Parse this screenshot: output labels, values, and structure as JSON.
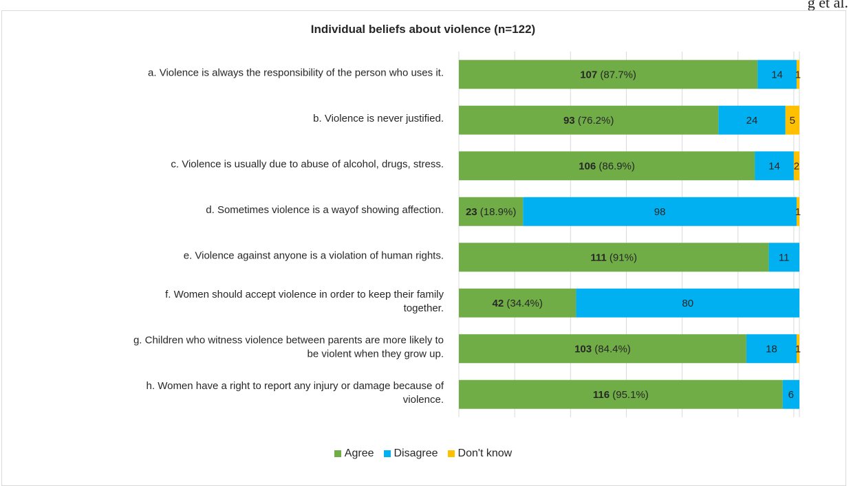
{
  "page": {
    "corner_text": "g et al."
  },
  "chart_data": {
    "type": "bar",
    "orientation": "horizontal",
    "stacked": true,
    "title": "Individual beliefs about violence (n=122)",
    "categories": [
      "a.  Violence is always the responsibility of the person who uses it.",
      "b. Violence is never justified.",
      "c. Violence is usually due to abuse of alcohol, drugs, stress.",
      "d.  Sometimes violence is a wayof showing affection.",
      "e. Violence against anyone is a violation of human rights.",
      "f. Women should accept violence in order to keep  their family together.",
      "g. Children who witness violence between parents are more likely to be violent when they grow up.",
      "h. Women have a right to report any injury or damage because of violence."
    ],
    "category_lines": [
      [
        "a.  Violence is always the responsibility of the person who uses it."
      ],
      [
        "b. Violence is never justified."
      ],
      [
        "c. Violence is usually due to abuse of alcohol, drugs, stress."
      ],
      [
        "d.  Sometimes violence is a wayof showing affection."
      ],
      [
        "e. Violence against anyone is a violation of human rights."
      ],
      [
        "f. Women should accept violence in order to keep  their family",
        "together."
      ],
      [
        "g. Children who witness violence between parents are more likely to",
        "be violent when they grow up."
      ],
      [
        "h. Women have a right to report any injury or damage because of",
        "violence."
      ]
    ],
    "series": [
      {
        "name": "Agree",
        "color": "#70ad47",
        "values": [
          107,
          93,
          106,
          23,
          111,
          42,
          103,
          116
        ]
      },
      {
        "name": "Disagree",
        "color": "#00b0f0",
        "values": [
          14,
          24,
          14,
          98,
          11,
          80,
          18,
          6
        ]
      },
      {
        "name": "Don't know",
        "color": "#ffc000",
        "values": [
          1,
          5,
          2,
          1,
          0,
          0,
          1,
          0
        ]
      }
    ],
    "agree_percent_labels": [
      "(87.7%)",
      "(76.2%)",
      "(86.9%)",
      "(18.9%)",
      "(91%)",
      "(34.4%)",
      "(84.4%)",
      "(95.1%)"
    ],
    "xlim": [
      0,
      122
    ],
    "grid": true,
    "legend_position": "bottom"
  }
}
